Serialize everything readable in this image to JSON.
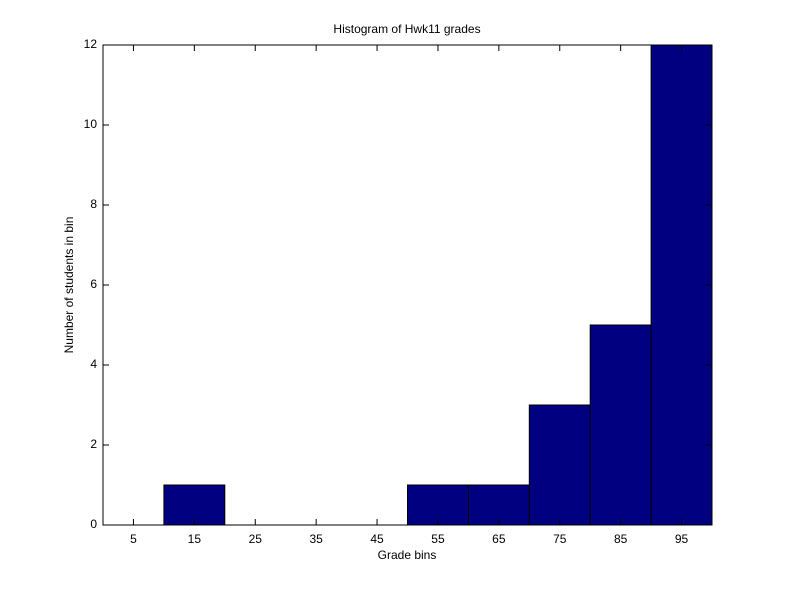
{
  "chart_data": {
    "type": "histogram",
    "title": "Histogram of Hwk11 grades",
    "x_label": "Grade bins",
    "y_label": "Number of students in bin",
    "bins": [
      0,
      10,
      20,
      30,
      40,
      50,
      60,
      70,
      80,
      90,
      100
    ],
    "values": [
      0,
      1,
      0,
      0,
      0,
      1,
      1,
      3,
      5,
      12
    ],
    "color": "#000080",
    "xlim": [
      0,
      100
    ],
    "xticks": [
      5,
      15,
      25,
      35,
      45,
      55,
      65,
      75,
      85,
      95
    ],
    "ylim": [
      0,
      12
    ],
    "yticks": [
      0,
      2,
      4,
      6,
      8,
      10,
      12
    ]
  }
}
